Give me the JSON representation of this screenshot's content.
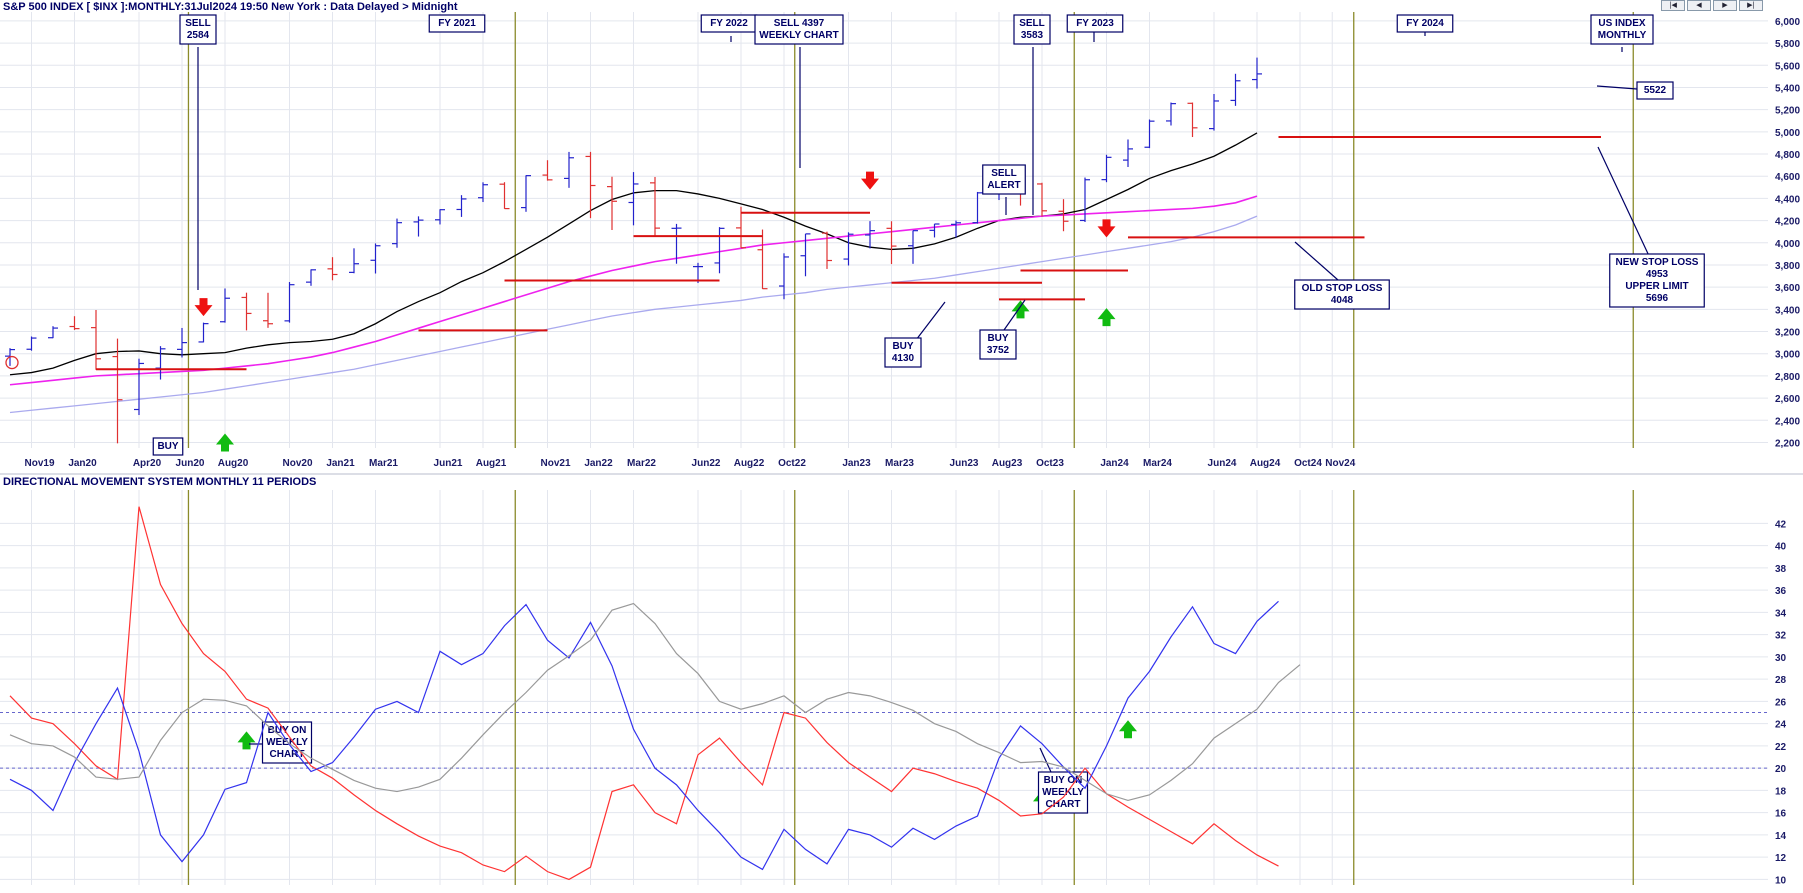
{
  "header": {
    "title": "S&P 500 INDEX [ $INX ]:MONTHLY:31Jul2024 19:50 New York : Data Delayed > Midnight",
    "nav_buttons": [
      "first-icon",
      "prev-icon",
      "next-icon",
      "last-icon"
    ],
    "nav_glyphs": [
      "|◀",
      "◀",
      "▶",
      "▶|"
    ]
  },
  "chart_data": [
    {
      "type": "bar",
      "subtype": "monthly OHLC price bars",
      "title": "S&P 500 INDEX [ $INX ]:MONTHLY",
      "x_ticks": [
        "Nov19",
        "Jan20",
        "Apr20",
        "Jun20",
        "Aug20",
        "Nov20",
        "Jan21",
        "Mar21",
        "Jun21",
        "Aug21",
        "Nov21",
        "Jan22",
        "Mar22",
        "Jun22",
        "Aug22",
        "Oct22",
        "Jan23",
        "Mar23",
        "Jun23",
        "Aug23",
        "Oct23",
        "Jan24",
        "Mar24",
        "Jun24",
        "Aug24",
        "Oct24",
        "Nov24"
      ],
      "y_ticks": [
        2200,
        2400,
        2600,
        2800,
        3000,
        3200,
        3400,
        3600,
        3800,
        4000,
        4200,
        4400,
        4600,
        4800,
        5000,
        5200,
        5400,
        5600,
        5800,
        6000
      ],
      "ylim": [
        2150,
        6080
      ],
      "grid": true,
      "months_start": "Oct19",
      "bars_ohlc": [
        [
          2978,
          3050,
          2890,
          3037
        ],
        [
          3040,
          3155,
          3027,
          3141
        ],
        [
          3144,
          3248,
          3140,
          3231
        ],
        [
          3245,
          3338,
          3214,
          3226
        ],
        [
          3235,
          3394,
          2855,
          2954
        ],
        [
          2974,
          3136,
          2192,
          2585
        ],
        [
          2497,
          2955,
          2447,
          2912
        ],
        [
          2870,
          3068,
          2767,
          3044
        ],
        [
          3039,
          3232,
          2966,
          3100
        ],
        [
          3106,
          3280,
          3102,
          3271
        ],
        [
          3288,
          3588,
          3280,
          3500
        ],
        [
          3507,
          3550,
          3210,
          3363
        ],
        [
          3297,
          3549,
          3233,
          3270
        ],
        [
          3296,
          3646,
          3280,
          3622
        ],
        [
          3645,
          3760,
          3612,
          3756
        ],
        [
          3765,
          3870,
          3662,
          3714
        ],
        [
          3733,
          3950,
          3725,
          3811
        ],
        [
          3842,
          3994,
          3723,
          3973
        ],
        [
          3992,
          4218,
          3955,
          4181
        ],
        [
          4188,
          4238,
          4056,
          4204
        ],
        [
          4207,
          4302,
          4165,
          4298
        ],
        [
          4300,
          4429,
          4233,
          4395
        ],
        [
          4406,
          4545,
          4367,
          4523
        ],
        [
          4528,
          4546,
          4306,
          4308
        ],
        [
          4317,
          4608,
          4279,
          4605
        ],
        [
          4610,
          4744,
          4560,
          4567
        ],
        [
          4580,
          4819,
          4495,
          4766
        ],
        [
          4778,
          4819,
          4222,
          4516
        ],
        [
          4506,
          4595,
          4115,
          4374
        ],
        [
          4363,
          4637,
          4157,
          4530
        ],
        [
          4540,
          4593,
          4062,
          4132
        ],
        [
          4130,
          4170,
          3811,
          4132
        ],
        [
          3785,
          3819,
          3637,
          3785
        ],
        [
          3818,
          4141,
          3725,
          4130
        ],
        [
          4134,
          4325,
          3955,
          3955
        ],
        [
          3937,
          4119,
          3584,
          3586
        ],
        [
          3610,
          3905,
          3491,
          3872
        ],
        [
          3883,
          4080,
          3698,
          4080
        ],
        [
          4087,
          4100,
          3764,
          3840
        ],
        [
          3853,
          4094,
          3795,
          4077
        ],
        [
          4070,
          4195,
          3949,
          4109
        ],
        [
          4130,
          4194,
          3808,
          3970
        ],
        [
          3973,
          4110,
          3810,
          4109
        ],
        [
          4112,
          4170,
          4048,
          4169
        ],
        [
          4166,
          4200,
          4048,
          4180
        ],
        [
          4181,
          4458,
          4172,
          4450
        ],
        [
          4452,
          4607,
          4385,
          4589
        ],
        [
          4578,
          4575,
          4335,
          4508
        ],
        [
          4530,
          4541,
          4238,
          4288
        ],
        [
          4284,
          4393,
          4104,
          4194
        ],
        [
          4201,
          4588,
          4187,
          4568
        ],
        [
          4569,
          4793,
          4546,
          4770
        ],
        [
          4745,
          4931,
          4683,
          4846
        ],
        [
          4861,
          5111,
          4853,
          5096
        ],
        [
          5098,
          5264,
          5057,
          5254
        ],
        [
          5257,
          5264,
          4953,
          5036
        ],
        [
          5029,
          5341,
          5011,
          5278
        ],
        [
          5283,
          5523,
          5234,
          5460
        ],
        [
          5471,
          5669,
          5390,
          5522
        ]
      ],
      "overlays": [
        {
          "name": "moving average (black)",
          "color": "#000000",
          "values": [
            2810,
            2830,
            2870,
            2940,
            3000,
            3020,
            3025,
            3000,
            2990,
            3000,
            3010,
            3050,
            3080,
            3100,
            3110,
            3130,
            3180,
            3270,
            3380,
            3470,
            3550,
            3650,
            3730,
            3830,
            3940,
            4050,
            4170,
            4290,
            4390,
            4450,
            4470,
            4470,
            4440,
            4400,
            4350,
            4300,
            4230,
            4150,
            4080,
            4000,
            3960,
            3940,
            3950,
            3990,
            4050,
            4130,
            4200,
            4230,
            4240,
            4260,
            4300,
            4390,
            4480,
            4580,
            4650,
            4710,
            4780,
            4880,
            4990
          ]
        },
        {
          "name": "moving average (magenta)",
          "color": "#ee22ee",
          "values": [
            2720,
            2740,
            2760,
            2780,
            2800,
            2810,
            2820,
            2830,
            2840,
            2850,
            2870,
            2890,
            2910,
            2940,
            2970,
            3010,
            3060,
            3110,
            3170,
            3230,
            3290,
            3350,
            3410,
            3470,
            3530,
            3590,
            3650,
            3700,
            3750,
            3790,
            3830,
            3860,
            3890,
            3920,
            3950,
            3980,
            4000,
            4020,
            4040,
            4060,
            4080,
            4100,
            4120,
            4140,
            4160,
            4180,
            4200,
            4220,
            4240,
            4250,
            4260,
            4270,
            4280,
            4290,
            4300,
            4310,
            4330,
            4360,
            4420
          ]
        },
        {
          "name": "moving average (lavender)",
          "color": "#aaaaee",
          "values": [
            2470,
            2490,
            2510,
            2530,
            2550,
            2570,
            2590,
            2610,
            2630,
            2650,
            2680,
            2710,
            2740,
            2770,
            2800,
            2830,
            2860,
            2900,
            2940,
            2980,
            3020,
            3060,
            3100,
            3140,
            3180,
            3220,
            3260,
            3300,
            3340,
            3370,
            3400,
            3420,
            3440,
            3460,
            3480,
            3510,
            3530,
            3550,
            3580,
            3600,
            3620,
            3640,
            3660,
            3680,
            3710,
            3740,
            3770,
            3800,
            3830,
            3860,
            3890,
            3920,
            3950,
            3980,
            4010,
            4050,
            4100,
            4160,
            4240
          ]
        }
      ],
      "stop_lines": [
        {
          "month": 4,
          "span": 7,
          "y": 2860
        },
        {
          "month": 19,
          "span": 6,
          "y": 3210
        },
        {
          "month": 23,
          "span": 10,
          "y": 3660
        },
        {
          "month": 29,
          "span": 6,
          "y": 4060
        },
        {
          "month": 34,
          "span": 6,
          "y": 4270
        },
        {
          "month": 41,
          "span": 7,
          "y": 3640
        },
        {
          "month": 46,
          "span": 4,
          "y": 3490
        },
        {
          "month": 47,
          "span": 5,
          "y": 3750
        },
        {
          "month": 52,
          "span": 11,
          "y": 4048
        },
        {
          "month": 59,
          "span": 15,
          "y": 4953
        }
      ],
      "arrows": [
        {
          "month": 9,
          "y": 3420,
          "dir": "down"
        },
        {
          "month": 40,
          "y": 4560,
          "dir": "down"
        },
        {
          "month": 51,
          "y": 4130,
          "dir": "down"
        },
        {
          "month": 10,
          "y": 2200,
          "dir": "up"
        },
        {
          "month": 47,
          "y": 3400,
          "dir": "up"
        },
        {
          "month": 51,
          "y": 3330,
          "dir": "up"
        }
      ],
      "annotations": [
        {
          "lines": [
            "SELL",
            "2584"
          ],
          "month": 9.5
        },
        {
          "lines": [
            "FY 2021"
          ],
          "month": 22
        },
        {
          "lines": [
            "FY 2022"
          ],
          "month": 35.8
        },
        {
          "lines": [
            "SELL 4397",
            "WEEKLY CHART"
          ],
          "month": 40
        },
        {
          "lines": [
            "SELL",
            "3583"
          ],
          "month": 51.5
        },
        {
          "lines": [
            "FY 2023"
          ],
          "month": 55
        },
        {
          "lines": [
            "FY 2024"
          ],
          "month": 72
        },
        {
          "lines": [
            "US INDEX",
            "MONTHLY"
          ],
          "month": 82
        },
        {
          "lines": [
            "SELL",
            "ALERT"
          ],
          "month": 50
        },
        {
          "lines": [
            "5522"
          ],
          "month": 84
        },
        {
          "lines": [
            "BUY",
            "4130"
          ],
          "month": 45
        },
        {
          "lines": [
            "BUY",
            "3752"
          ],
          "month": 50
        },
        {
          "lines": [
            "OLD STOP LOSS",
            "4048"
          ],
          "month": 67
        },
        {
          "lines": [
            "NEW STOP LOSS",
            "4953",
            "UPPER LIMIT",
            "5696"
          ],
          "month": 86
        },
        {
          "lines": [
            "BUY"
          ],
          "month": 8.5
        }
      ]
    },
    {
      "type": "line",
      "title": "DIRECTIONAL MOVEMENT SYSTEM MONTHLY 11 PERIODS",
      "y_ticks": [
        10,
        12,
        14,
        16,
        18,
        20,
        22,
        24,
        26,
        28,
        30,
        32,
        34,
        36,
        38,
        40,
        42
      ],
      "ylim": [
        9.5,
        45
      ],
      "reference_lines": [
        20,
        25
      ],
      "grid": true,
      "series": [
        {
          "color": "#ff3333",
          "values": [
            26.5,
            24.5,
            24,
            22.2,
            20.2,
            19,
            43.5,
            36.5,
            33,
            30.3,
            28.7,
            26.2,
            25.4,
            22.8,
            20.2,
            19.1,
            17.6,
            16.2,
            15,
            13.9,
            13,
            12.4,
            11.3,
            10.7,
            12.1,
            10.7,
            10,
            11.1,
            17.9,
            18.5,
            16,
            15,
            21.2,
            22.7,
            20.5,
            18.5,
            25,
            24.5,
            22.3,
            20.5,
            19.2,
            17.9,
            20,
            19.5,
            18.8,
            18.2,
            17.1,
            15.7,
            15.9,
            17.4,
            20,
            17.7,
            16.5,
            15.4,
            14.3,
            13.2,
            15,
            13.5,
            12.2,
            11.2
          ]
        },
        {
          "color": "#3333ee",
          "values": [
            19,
            18,
            16.2,
            20.5,
            24,
            27.2,
            21.5,
            14,
            11.6,
            14,
            18.1,
            18.7,
            25,
            22.1,
            19.7,
            20.5,
            22.8,
            25.3,
            26,
            25,
            30.5,
            29.3,
            30.3,
            32.8,
            34.7,
            31.5,
            29.9,
            33.1,
            29.2,
            23.5,
            20,
            18.5,
            16.2,
            14.2,
            12,
            10.9,
            14.5,
            12.7,
            11.4,
            14.5,
            14,
            12.9,
            14.6,
            13.6,
            14.8,
            15.7,
            20.9,
            23.8,
            22.2,
            20.1,
            18.2,
            22,
            26.3,
            28.7,
            31.8,
            34.5,
            31.2,
            30.3,
            33.2,
            35
          ]
        },
        {
          "color": "#999999",
          "values": [
            23,
            22.2,
            22,
            21,
            19.2,
            19,
            19.2,
            22.5,
            25,
            26.2,
            26.1,
            25.6,
            23.8,
            22.2,
            20.9,
            19.9,
            18.9,
            18.2,
            17.9,
            18.3,
            19,
            20.9,
            23,
            25,
            26.8,
            28.8,
            30.1,
            31.5,
            34.2,
            34.8,
            33,
            30.3,
            28.5,
            26,
            25.3,
            25.8,
            26.5,
            25,
            26.2,
            26.8,
            26.5,
            25.9,
            25.2,
            24,
            23.3,
            22.2,
            21.4,
            20.5,
            20.6,
            20.1,
            18.9,
            17.7,
            17.1,
            17.6,
            18.9,
            20.4,
            22.7,
            24,
            25.3,
            27.7,
            29.3
          ]
        }
      ],
      "arrows": [
        {
          "month": 11,
          "y": 22.5,
          "dir": "up"
        },
        {
          "month": 48,
          "y": 17.2,
          "dir": "up"
        },
        {
          "month": 52,
          "y": 23.5,
          "dir": "up"
        }
      ],
      "annotations": [
        {
          "lines": [
            "BUY ON",
            "WEEKLY",
            "CHART"
          ],
          "month": 14.5
        },
        {
          "lines": [
            "BUY ON",
            "WEEKLY",
            "CHART"
          ],
          "month": 54
        }
      ]
    }
  ],
  "colors": {
    "grid": "#e3e6ee",
    "fiscal_line": "#8a8a2a",
    "bar_up": "#2222cc",
    "bar_down": "#e03030",
    "stop_line": "#d81010",
    "arrow_down": "#ee1111",
    "arrow_up": "#11bb11",
    "label_text": "#000066",
    "label_border": "#000066"
  }
}
